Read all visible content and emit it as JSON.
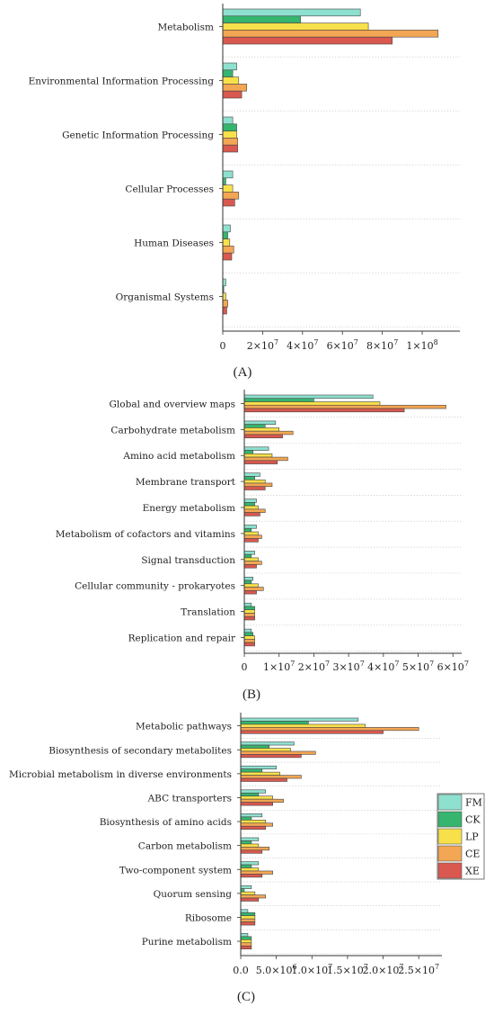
{
  "series_names": [
    "FM",
    "CK",
    "LP",
    "CE",
    "XE"
  ],
  "colors": {
    "FM": "#8ee0cf",
    "CK": "#35b56e",
    "LP": "#f8e04a",
    "CE": "#f3a653",
    "XE": "#d9584f"
  },
  "chart_data": [
    {
      "type": "bar",
      "orientation": "horizontal",
      "panel_label": "(A)",
      "categories": [
        "Metabolism",
        "Environmental Information Processing",
        "Genetic Information Processing",
        "Cellular Processes",
        "Human Diseases",
        "Organismal Systems"
      ],
      "series": [
        {
          "name": "FM",
          "values": [
            69000000,
            7000000,
            5000000,
            5000000,
            3800000,
            1500000
          ]
        },
        {
          "name": "CK",
          "values": [
            39000000,
            5000000,
            7000000,
            1500000,
            2500000,
            500000
          ]
        },
        {
          "name": "LP",
          "values": [
            73000000,
            8000000,
            7000000,
            5000000,
            3500000,
            1500000
          ]
        },
        {
          "name": "CE",
          "values": [
            108000000,
            12000000,
            7500000,
            8000000,
            5500000,
            2500000
          ]
        },
        {
          "name": "XE",
          "values": [
            85000000,
            9500000,
            7500000,
            6000000,
            4500000,
            2000000
          ]
        }
      ],
      "xlim": [
        0,
        118000000
      ],
      "x_ticks": [
        {
          "value": 0,
          "label": "0",
          "exp": ""
        },
        {
          "value": 20000000,
          "label": "2×10",
          "exp": "7"
        },
        {
          "value": 40000000,
          "label": "4×10",
          "exp": "7"
        },
        {
          "value": 60000000,
          "label": "6×10",
          "exp": "7"
        },
        {
          "value": 80000000,
          "label": "8×10",
          "exp": "7"
        },
        {
          "value": 100000000,
          "label": "1×10",
          "exp": "8"
        }
      ],
      "grid": "horizontal dotted separators"
    },
    {
      "type": "bar",
      "orientation": "horizontal",
      "panel_label": "(B)",
      "categories": [
        "Global and overview maps",
        "Carbohydrate metabolism",
        "Amino acid metabolism",
        "Membrane transport",
        "Energy metabolism",
        "Metabolism of cofactors and vitamins",
        "Signal transduction",
        "Cellular community - prokaryotes",
        "Translation",
        "Replication and repair"
      ],
      "series": [
        {
          "name": "FM",
          "values": [
            37000000,
            9000000,
            7000000,
            4500000,
            3500000,
            3500000,
            3000000,
            2500000,
            2000000,
            2000000
          ]
        },
        {
          "name": "CK",
          "values": [
            20000000,
            6000000,
            2500000,
            3000000,
            3000000,
            2000000,
            2000000,
            2000000,
            3000000,
            2500000
          ]
        },
        {
          "name": "LP",
          "values": [
            39000000,
            10000000,
            8000000,
            6000000,
            4000000,
            4000000,
            4000000,
            4000000,
            3000000,
            3000000
          ]
        },
        {
          "name": "CE",
          "values": [
            58000000,
            14000000,
            12500000,
            8000000,
            6000000,
            5000000,
            5000000,
            5500000,
            3000000,
            3000000
          ]
        },
        {
          "name": "XE",
          "values": [
            46000000,
            11000000,
            9500000,
            6000000,
            4500000,
            4000000,
            3500000,
            3500000,
            3000000,
            3000000
          ]
        }
      ],
      "xlim": [
        0,
        62000000
      ],
      "x_ticks": [
        {
          "value": 0,
          "label": "0",
          "exp": ""
        },
        {
          "value": 10000000,
          "label": "1×10",
          "exp": "7"
        },
        {
          "value": 20000000,
          "label": "2×10",
          "exp": "7"
        },
        {
          "value": 30000000,
          "label": "3×10",
          "exp": "7"
        },
        {
          "value": 40000000,
          "label": "4×10",
          "exp": "7"
        },
        {
          "value": 50000000,
          "label": "5×10",
          "exp": "7"
        },
        {
          "value": 60000000,
          "label": "6×10",
          "exp": "7"
        }
      ],
      "grid": "horizontal dotted separators"
    },
    {
      "type": "bar",
      "orientation": "horizontal",
      "panel_label": "(C)",
      "categories": [
        "Metabolic pathways",
        "Biosynthesis of secondary metabolites",
        "Microbial metabolism in diverse environments",
        "ABC transporters",
        "Biosynthesis of amino acids",
        "Carbon metabolism",
        "Two-component system",
        "Quorum sensing",
        "Ribosome",
        "Purine metabolism"
      ],
      "series": [
        {
          "name": "FM",
          "values": [
            16500000,
            7500000,
            5000000,
            3500000,
            3000000,
            2500000,
            2500000,
            1500000,
            1000000,
            1000000
          ]
        },
        {
          "name": "CK",
          "values": [
            9500000,
            4000000,
            3000000,
            2500000,
            1500000,
            1500000,
            1500000,
            500000,
            2000000,
            1500000
          ]
        },
        {
          "name": "LP",
          "values": [
            17500000,
            7000000,
            5500000,
            4500000,
            3500000,
            2500000,
            2500000,
            2000000,
            2000000,
            1500000
          ]
        },
        {
          "name": "CE",
          "values": [
            25000000,
            10500000,
            8500000,
            6000000,
            4500000,
            4000000,
            4500000,
            3500000,
            2000000,
            1500000
          ]
        },
        {
          "name": "XE",
          "values": [
            20000000,
            8500000,
            6500000,
            4500000,
            3500000,
            3000000,
            3000000,
            2500000,
            2000000,
            1500000
          ]
        }
      ],
      "xlim": [
        0,
        28000000
      ],
      "x_ticks": [
        {
          "value": 0,
          "label": "0.0",
          "exp": ""
        },
        {
          "value": 5000000,
          "label": "5.0×10",
          "exp": "6"
        },
        {
          "value": 10000000,
          "label": "1.0×10",
          "exp": "7"
        },
        {
          "value": 15000000,
          "label": "1.5×10",
          "exp": "7"
        },
        {
          "value": 20000000,
          "label": "2.0×10",
          "exp": "7"
        },
        {
          "value": 25000000,
          "label": "2.5×10",
          "exp": "7"
        }
      ],
      "legend": [
        "FM",
        "CK",
        "LP",
        "CE",
        "XE"
      ],
      "legend_position": "right",
      "grid": "horizontal dotted separators"
    }
  ]
}
